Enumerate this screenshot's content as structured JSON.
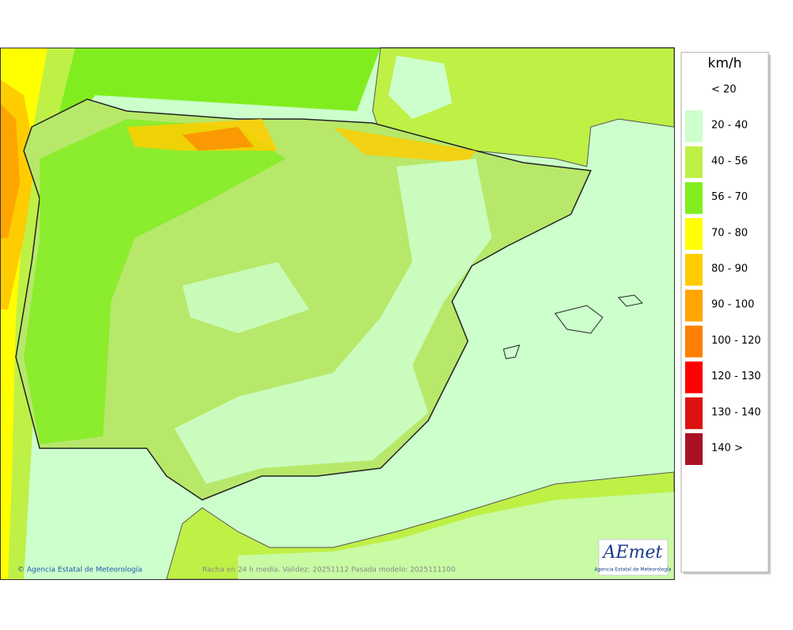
{
  "map": {
    "footer_credit": "© Agencia Estatal de Meteorología",
    "footer_caption": "Racha en 24 h media. Validez: 20251112 Pasada modelo: 2025111100",
    "logo": {
      "name": "AEmet",
      "subtitle": "Agencia Estatal de Meteorología"
    }
  },
  "legend": {
    "title": "km/h",
    "items": [
      {
        "label": "< 20",
        "color": "#ffffff"
      },
      {
        "label": "20 - 40",
        "color": "#ccffcc"
      },
      {
        "label": "40 - 56",
        "color": "#bff046"
      },
      {
        "label": "56 - 70",
        "color": "#80ee1e"
      },
      {
        "label": "70 - 80",
        "color": "#ffff00"
      },
      {
        "label": "80 - 90",
        "color": "#ffcc00"
      },
      {
        "label": "90 - 100",
        "color": "#ffa500"
      },
      {
        "label": "100 - 120",
        "color": "#ff8000"
      },
      {
        "label": "120 - 130",
        "color": "#ff0000"
      },
      {
        "label": "130 - 140",
        "color": "#dd1111"
      },
      {
        "label": "140 >",
        "color": "#aa1122"
      }
    ]
  }
}
